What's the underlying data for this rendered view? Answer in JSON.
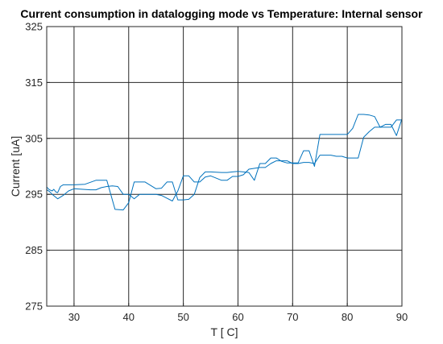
{
  "chart_data": {
    "type": "line",
    "title": "Current consumption in datalogging mode vs Temperature: Internal sensor",
    "xlabel": "T [ C]",
    "ylabel": "Current [uA]",
    "xlim": [
      25,
      90
    ],
    "ylim": [
      275,
      325
    ],
    "xticks": [
      30,
      40,
      50,
      60,
      70,
      80,
      90
    ],
    "yticks": [
      275,
      285,
      295,
      305,
      315,
      325
    ],
    "grid": true,
    "series_color": "#0072BD",
    "series": [
      {
        "x": [
          25,
          25.5,
          26,
          26.3,
          26.7,
          27,
          27.5,
          28,
          28.5,
          30,
          32,
          34,
          36,
          37.5,
          39,
          40,
          41,
          43,
          45,
          46,
          47,
          48,
          49,
          50,
          51,
          52,
          53,
          54,
          55,
          57,
          58,
          59,
          60,
          61,
          62,
          63,
          64,
          65,
          66,
          67,
          68,
          69,
          70,
          71,
          72,
          73,
          74,
          75,
          76,
          77,
          78,
          79,
          80,
          81,
          82,
          83,
          84,
          85,
          86,
          87,
          88,
          89,
          90
        ],
        "y": [
          296.3,
          295.8,
          295.6,
          295.9,
          295.4,
          295.3,
          296.4,
          296.7,
          296.7,
          296.7,
          296.8,
          297.5,
          297.5,
          292.3,
          292.2,
          293.5,
          297.2,
          297.2,
          296.0,
          296.1,
          297.2,
          297.2,
          294.0,
          294.0,
          294.1,
          295.0,
          298.0,
          299.0,
          299.0,
          298.9,
          298.9,
          299.0,
          299.1,
          299.0,
          298.9,
          297.5,
          300.5,
          300.5,
          301.5,
          301.5,
          300.9,
          300.6,
          300.6,
          300.6,
          302.8,
          302.8,
          300.0,
          305.7,
          305.7,
          305.7,
          305.7,
          305.7,
          305.7,
          306.8,
          309.3,
          309.3,
          309.2,
          308.9,
          307.0,
          307.0,
          307.0,
          308.3,
          308.3
        ]
      },
      {
        "x": [
          25,
          25.5,
          26,
          27,
          28,
          29,
          30,
          33,
          34,
          35,
          36,
          37,
          38,
          39,
          40,
          41,
          42,
          43,
          44,
          45,
          46,
          47,
          48,
          49,
          50,
          51,
          52,
          53,
          54,
          55,
          57,
          58,
          59,
          60,
          61,
          62,
          64,
          65,
          66,
          67,
          68,
          69,
          70,
          71,
          72,
          73,
          74,
          75,
          76,
          77,
          78,
          79,
          80,
          81,
          82,
          83,
          84,
          85,
          86,
          87,
          88,
          89,
          90
        ],
        "y": [
          295.8,
          295.5,
          295.0,
          294.2,
          294.8,
          295.6,
          296.0,
          295.8,
          295.8,
          296.2,
          296.4,
          296.5,
          296.4,
          295.0,
          295.0,
          294.2,
          295.0,
          295.0,
          295.0,
          295.0,
          294.8,
          294.3,
          293.8,
          295.6,
          298.3,
          298.3,
          297.2,
          297.2,
          298.1,
          298.3,
          297.5,
          297.5,
          298.2,
          298.2,
          298.5,
          299.5,
          299.8,
          299.8,
          300.5,
          301.0,
          301.0,
          301.0,
          300.5,
          300.5,
          300.7,
          300.7,
          300.5,
          302.0,
          302.0,
          302.0,
          301.8,
          301.8,
          301.5,
          301.5,
          301.5,
          305.2,
          306.2,
          307.0,
          307.0,
          307.5,
          307.5,
          305.5,
          308.5
        ]
      }
    ]
  }
}
